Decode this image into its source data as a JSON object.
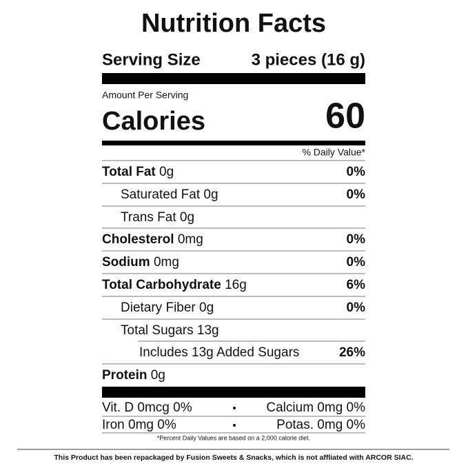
{
  "label": {
    "title": "Nutrition Facts",
    "serving_label": "Serving Size",
    "serving_value": "3 pieces (16 g)",
    "amount_per_serving": "Amount Per Serving",
    "calories_label": "Calories",
    "calories_value": "60",
    "daily_value_header": "% Daily Value*",
    "nutrients": [
      {
        "name": "Total Fat",
        "amount": "0g",
        "dv": "0%"
      },
      {
        "name": "Saturated Fat",
        "amount": "0g",
        "dv": "0%"
      },
      {
        "name": "Trans Fat",
        "amount": "0g"
      },
      {
        "name": "Cholesterol",
        "amount": "0mg",
        "dv": "0%"
      },
      {
        "name": "Sodium",
        "amount": "0mg",
        "dv": "0%"
      },
      {
        "name": "Total Carbohydrate",
        "amount": "16g",
        "dv": "6%"
      },
      {
        "name": "Dietary Fiber",
        "amount": "0g",
        "dv": "0%"
      },
      {
        "name": "Total Sugars",
        "amount": "13g"
      },
      {
        "name": "Includes 13g Added Sugars",
        "dv": "26%"
      },
      {
        "name": "Protein",
        "amount": "0g"
      }
    ],
    "vitamins": [
      [
        "Vit. D 0mcg 0%",
        "Calcium 0mg 0%"
      ],
      [
        "Iron 0mg 0%",
        "Potas. 0mg 0%"
      ]
    ],
    "footnote": "*Percent Daily Values are based on a 2,000 calorie diet."
  },
  "disclaimer": "This Product has been repackaged by Fusion Sweets & Snacks, which is not affliated with ARCOR SIAC."
}
